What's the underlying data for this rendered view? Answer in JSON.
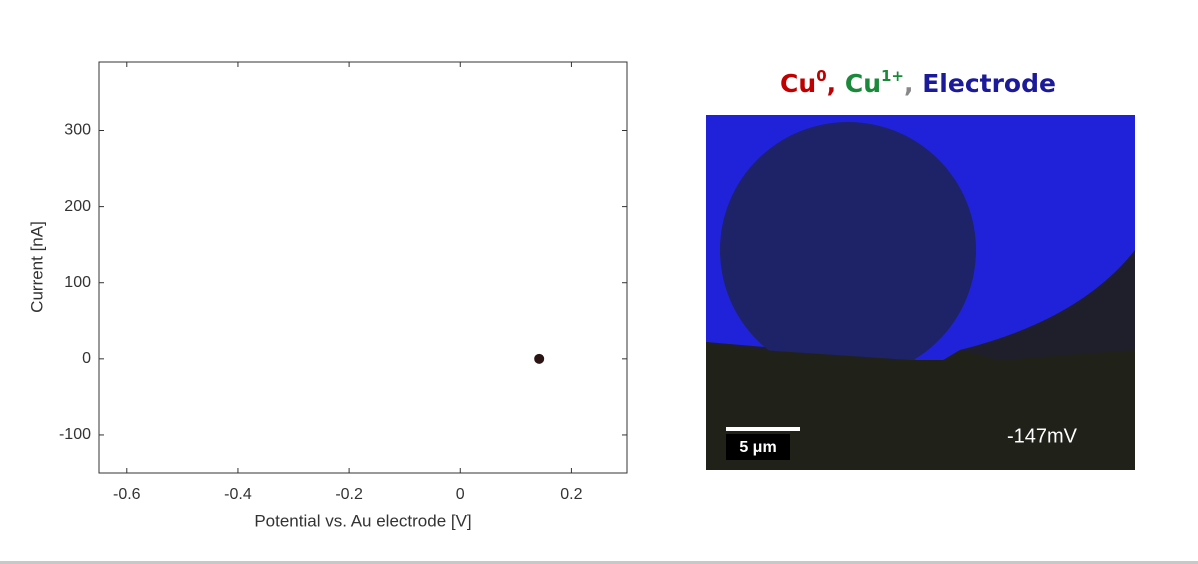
{
  "chart_data": {
    "type": "scatter",
    "x_label": "Potential vs. Au electrode [V]",
    "y_label": "Current [nA]",
    "x": [
      0.142
    ],
    "values": [
      0
    ],
    "color": "#2a1414",
    "xlim": [
      -0.65,
      0.3
    ],
    "xticks": [
      -0.6,
      -0.4,
      -0.2,
      0,
      0.2
    ],
    "ylim": [
      -150,
      390
    ],
    "yticks": [
      -100,
      0,
      100,
      200,
      300
    ]
  },
  "image": {
    "title_parts": [
      "Cu",
      "0",
      ",",
      "Cu",
      "1+",
      ",",
      "Electrode"
    ],
    "scale_bar": "5 μm",
    "potential": "-147mV"
  }
}
